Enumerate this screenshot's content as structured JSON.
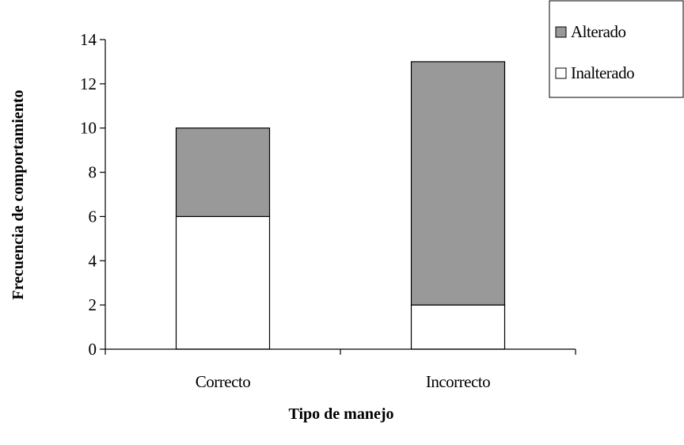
{
  "chart_data": {
    "type": "bar",
    "stacked": true,
    "categories": [
      "Correcto",
      "Incorrecto"
    ],
    "series": [
      {
        "name": "Inalterado",
        "values": [
          6,
          2
        ],
        "color": "#ffffff"
      },
      {
        "name": "Alterado",
        "values": [
          4,
          11
        ],
        "color": "#999999"
      }
    ],
    "xlabel": "Tipo de manejo",
    "ylabel": "Frecuencia  de comportamiento",
    "ylim": [
      0,
      14
    ],
    "yticks": [
      0,
      2,
      4,
      6,
      8,
      10,
      12,
      14
    ],
    "grid": false,
    "legend_position": "top-right",
    "legend_order": [
      "Alterado",
      "Inalterado"
    ]
  }
}
